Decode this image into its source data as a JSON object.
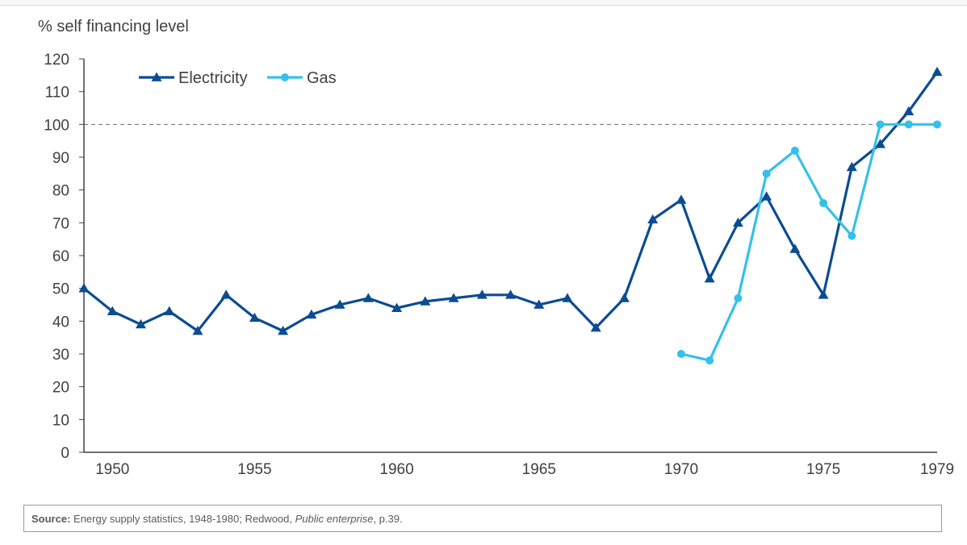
{
  "chart_data": {
    "type": "line",
    "title": "",
    "ylabel": "% self financing level",
    "xlabel": "",
    "xlim": [
      1949,
      1979
    ],
    "ylim": [
      0,
      120
    ],
    "y_ticks": [
      0,
      10,
      20,
      30,
      40,
      50,
      60,
      70,
      80,
      90,
      100,
      110,
      120
    ],
    "x_ticks": [
      1950,
      1955,
      1960,
      1965,
      1970,
      1975,
      1979
    ],
    "reference_line": {
      "y": 100,
      "style": "dashed"
    },
    "legend_position": "top-left",
    "grid": false,
    "series": [
      {
        "name": "Electricity",
        "color": "#0b4c93",
        "marker": "triangle",
        "x": [
          1949,
          1950,
          1951,
          1952,
          1953,
          1954,
          1955,
          1956,
          1957,
          1958,
          1959,
          1960,
          1961,
          1962,
          1963,
          1964,
          1965,
          1966,
          1967,
          1968,
          1969,
          1970,
          1971,
          1972,
          1973,
          1974,
          1975,
          1976,
          1977,
          1978,
          1979
        ],
        "values": [
          50,
          43,
          39,
          43,
          37,
          48,
          41,
          37,
          42,
          45,
          47,
          44,
          46,
          47,
          48,
          48,
          45,
          47,
          38,
          47,
          71,
          77,
          53,
          70,
          78,
          62,
          48,
          87,
          94,
          104,
          116
        ]
      },
      {
        "name": "Gas",
        "color": "#34c0ea",
        "marker": "circle",
        "x": [
          1970,
          1971,
          1972,
          1973,
          1974,
          1975,
          1976,
          1977,
          1978,
          1979
        ],
        "values": [
          30,
          28,
          47,
          85,
          92,
          76,
          66,
          100,
          100,
          100
        ]
      }
    ]
  },
  "source": {
    "label": "Source:",
    "text_before": " Energy supply statistics, 1948-1980; Redwood, ",
    "italic": "Public enterprise",
    "text_after": ", p.39."
  }
}
